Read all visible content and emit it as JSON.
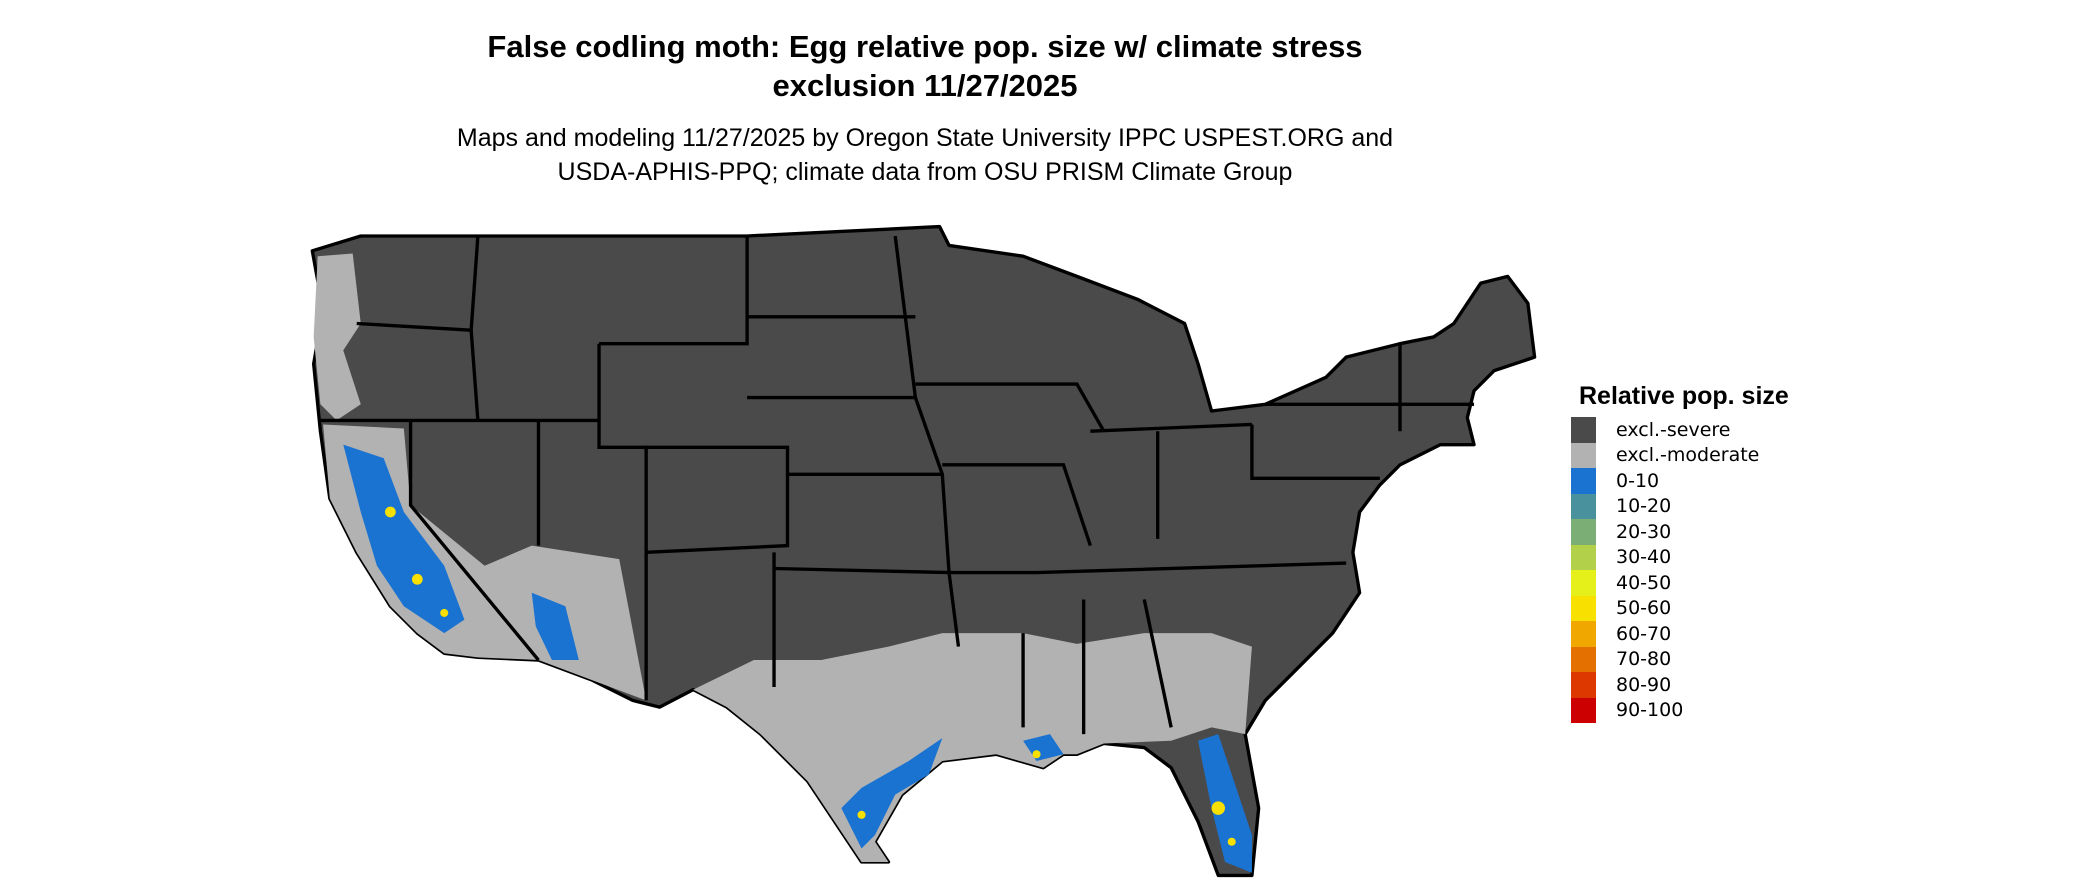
{
  "title_line1": "False codling moth: Egg relative pop. size w/ climate stress",
  "title_line2": "exclusion 11/27/2025",
  "subtitle_line1": "Maps and modeling 11/27/2025 by Oregon State University IPPC USPEST.ORG and",
  "subtitle_line2": "USDA-APHIS-PPQ; climate data from OSU PRISM Climate Group",
  "legend": {
    "title": "Relative pop. size",
    "items": [
      {
        "label": "excl.-severe",
        "color": "#4a4a4a"
      },
      {
        "label": "excl.-moderate",
        "color": "#b2b2b2"
      },
      {
        "label": "0-10",
        "color": "#1a73d1"
      },
      {
        "label": "10-20",
        "color": "#4a919e"
      },
      {
        "label": "20-30",
        "color": "#7bae74"
      },
      {
        "label": "30-40",
        "color": "#b3d04a"
      },
      {
        "label": "40-50",
        "color": "#e5f01a"
      },
      {
        "label": "50-60",
        "color": "#f8e000"
      },
      {
        "label": "60-70",
        "color": "#f0a800"
      },
      {
        "label": "70-80",
        "color": "#e47000"
      },
      {
        "label": "80-90",
        "color": "#dc3800"
      },
      {
        "label": "90-100",
        "color": "#cc0000"
      }
    ]
  }
}
